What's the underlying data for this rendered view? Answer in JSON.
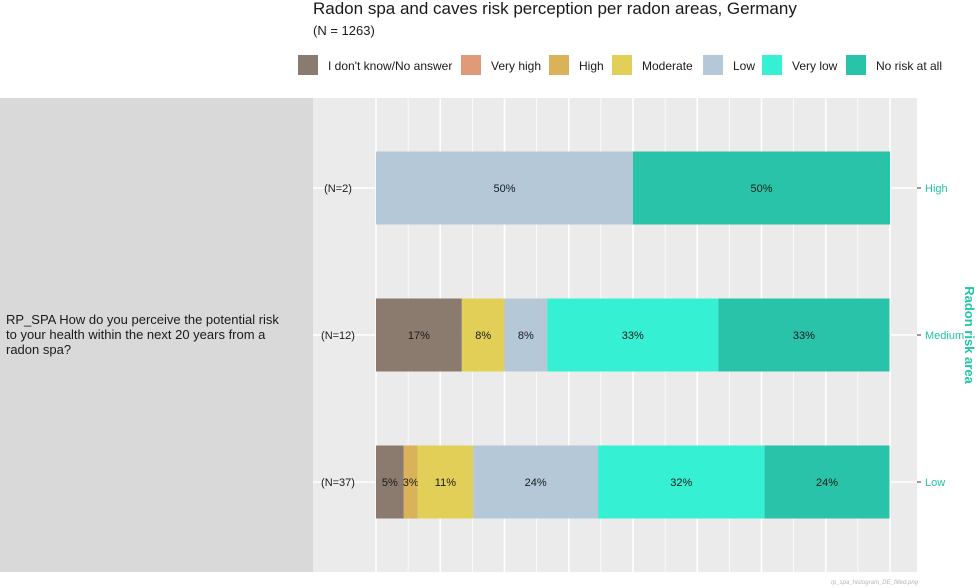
{
  "chart_data": {
    "type": "bar",
    "orientation": "horizontal",
    "stacked": true,
    "title": "Radon spa and caves risk perception per radon areas, Germany",
    "subtitle": "(N = 1263)",
    "question": "RP_SPA How do you perceive the potential risk to your health within the next 20 years from a radon spa?",
    "right_axis_title": "Radon risk area",
    "xlim": [
      0,
      100
    ],
    "legend_position": "top",
    "grid": true,
    "colors": {
      "accent": "#20c6a4"
    },
    "series": [
      {
        "name": "I don't know/No answer",
        "color": "#8b7b6e"
      },
      {
        "name": "Very high",
        "color": "#e09a78"
      },
      {
        "name": "High",
        "color": "#d9b25a"
      },
      {
        "name": "Moderate",
        "color": "#e1cf57"
      },
      {
        "name": "Low",
        "color": "#b4c8d8"
      },
      {
        "name": "Very low",
        "color": "#35f0d3"
      },
      {
        "name": "No risk at all",
        "color": "#28c3a9"
      }
    ],
    "rows": [
      {
        "category": "High",
        "n_label": "(N=2)",
        "values": [
          0,
          0,
          0,
          0,
          50,
          0,
          50
        ],
        "labels": [
          "",
          "",
          "",
          "",
          "50%",
          "",
          "50%"
        ]
      },
      {
        "category": "Medium",
        "n_label": "(N=12)",
        "values": [
          16.7,
          0,
          0,
          8.3,
          8.3,
          33.3,
          33.3
        ],
        "labels": [
          "17%",
          "",
          "",
          "8%",
          "8%",
          "33%",
          "33%"
        ]
      },
      {
        "category": "Low",
        "n_label": "(N=37)",
        "values": [
          5.4,
          0,
          2.7,
          10.8,
          24.3,
          32.4,
          24.3
        ],
        "labels": [
          "5%",
          "",
          "3%",
          "11%",
          "24%",
          "32%",
          "24%"
        ]
      }
    ],
    "watermark": "rp_spa_histogram_DE_filled.png"
  }
}
